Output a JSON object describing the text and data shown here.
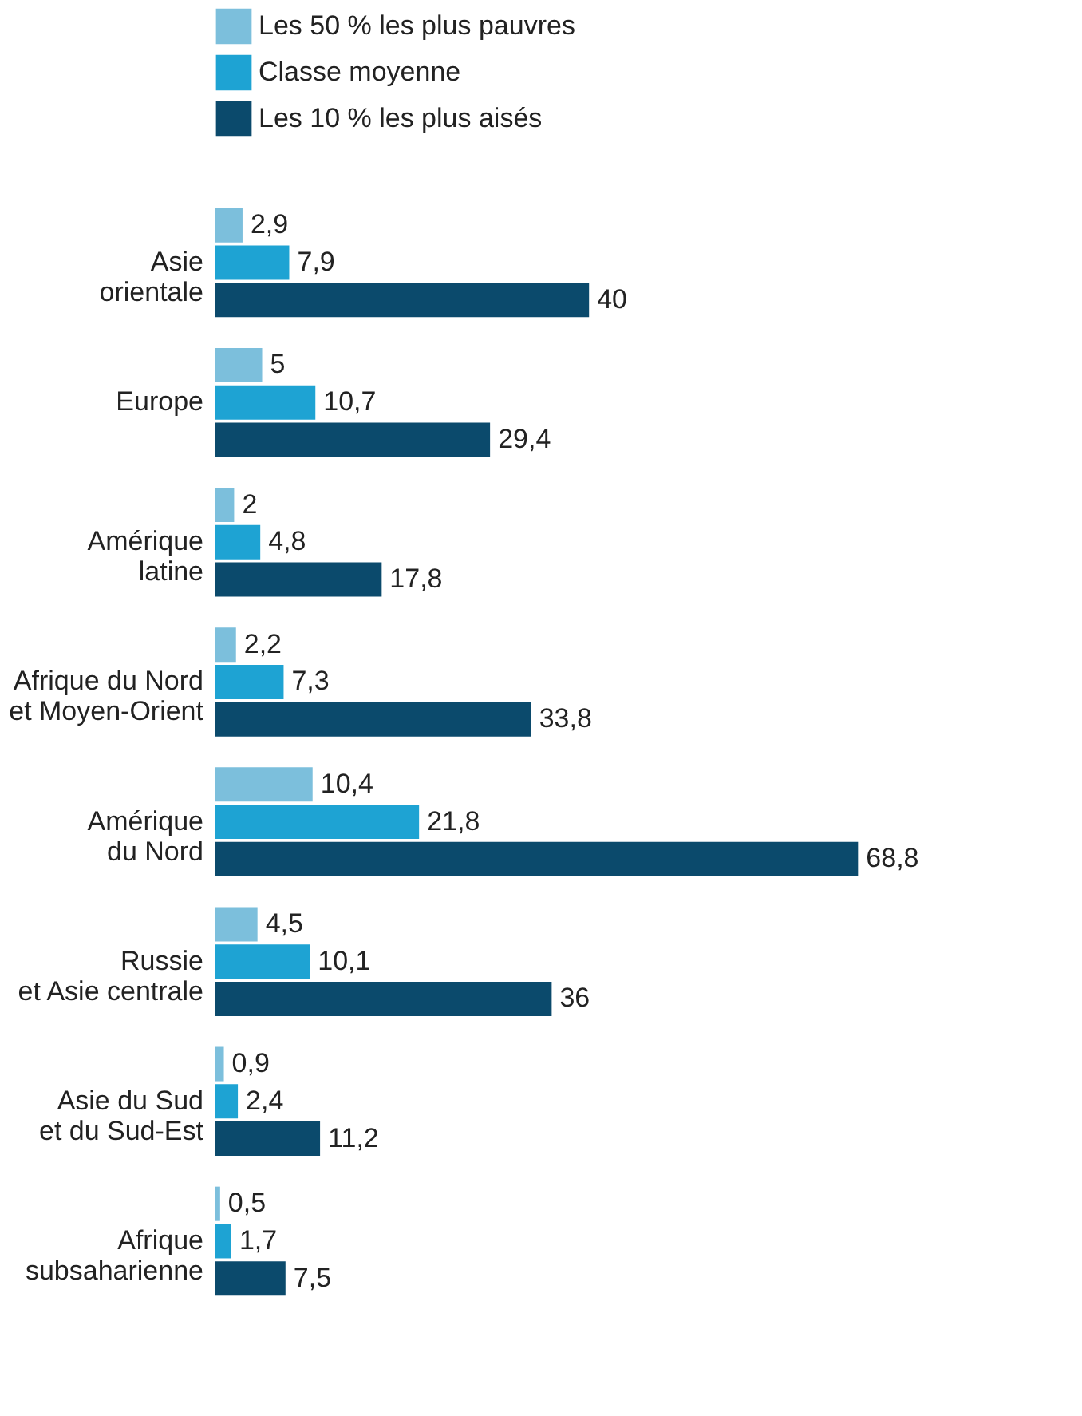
{
  "chart_data": {
    "type": "bar",
    "orientation": "horizontal",
    "categories": [
      "Asie\norientale",
      "Europe",
      "Amérique\nlatine",
      "Afrique du Nord\net Moyen-Orient",
      "Amérique\ndu Nord",
      "Russie\net Asie centrale",
      "Asie du Sud\net du Sud-Est",
      "Afrique\nsubsaharienne"
    ],
    "series": [
      {
        "name": "Les 50 % les plus pauvres",
        "color": "#7cbfdc",
        "values": [
          2.9,
          5,
          2,
          2.2,
          10.4,
          4.5,
          0.9,
          0.5
        ],
        "value_labels": [
          "2,9",
          "5",
          "2",
          "2,2",
          "10,4",
          "4,5",
          "0,9",
          "0,5"
        ]
      },
      {
        "name": "Classe moyenne",
        "color": "#1ea3d3",
        "values": [
          7.9,
          10.7,
          4.8,
          7.3,
          21.8,
          10.1,
          2.4,
          1.7
        ],
        "value_labels": [
          "7,9",
          "10,7",
          "4,8",
          "7,3",
          "21,8",
          "10,1",
          "2,4",
          "1,7"
        ]
      },
      {
        "name": "Les 10 % les plus aisés",
        "color": "#0b4a6c",
        "values": [
          40,
          29.4,
          17.8,
          33.8,
          68.8,
          36,
          11.2,
          7.5
        ],
        "value_labels": [
          "40",
          "29,4",
          "17,8",
          "33,8",
          "68,8",
          "36",
          "11,2",
          "7,5"
        ]
      }
    ],
    "legend": "top left"
  }
}
